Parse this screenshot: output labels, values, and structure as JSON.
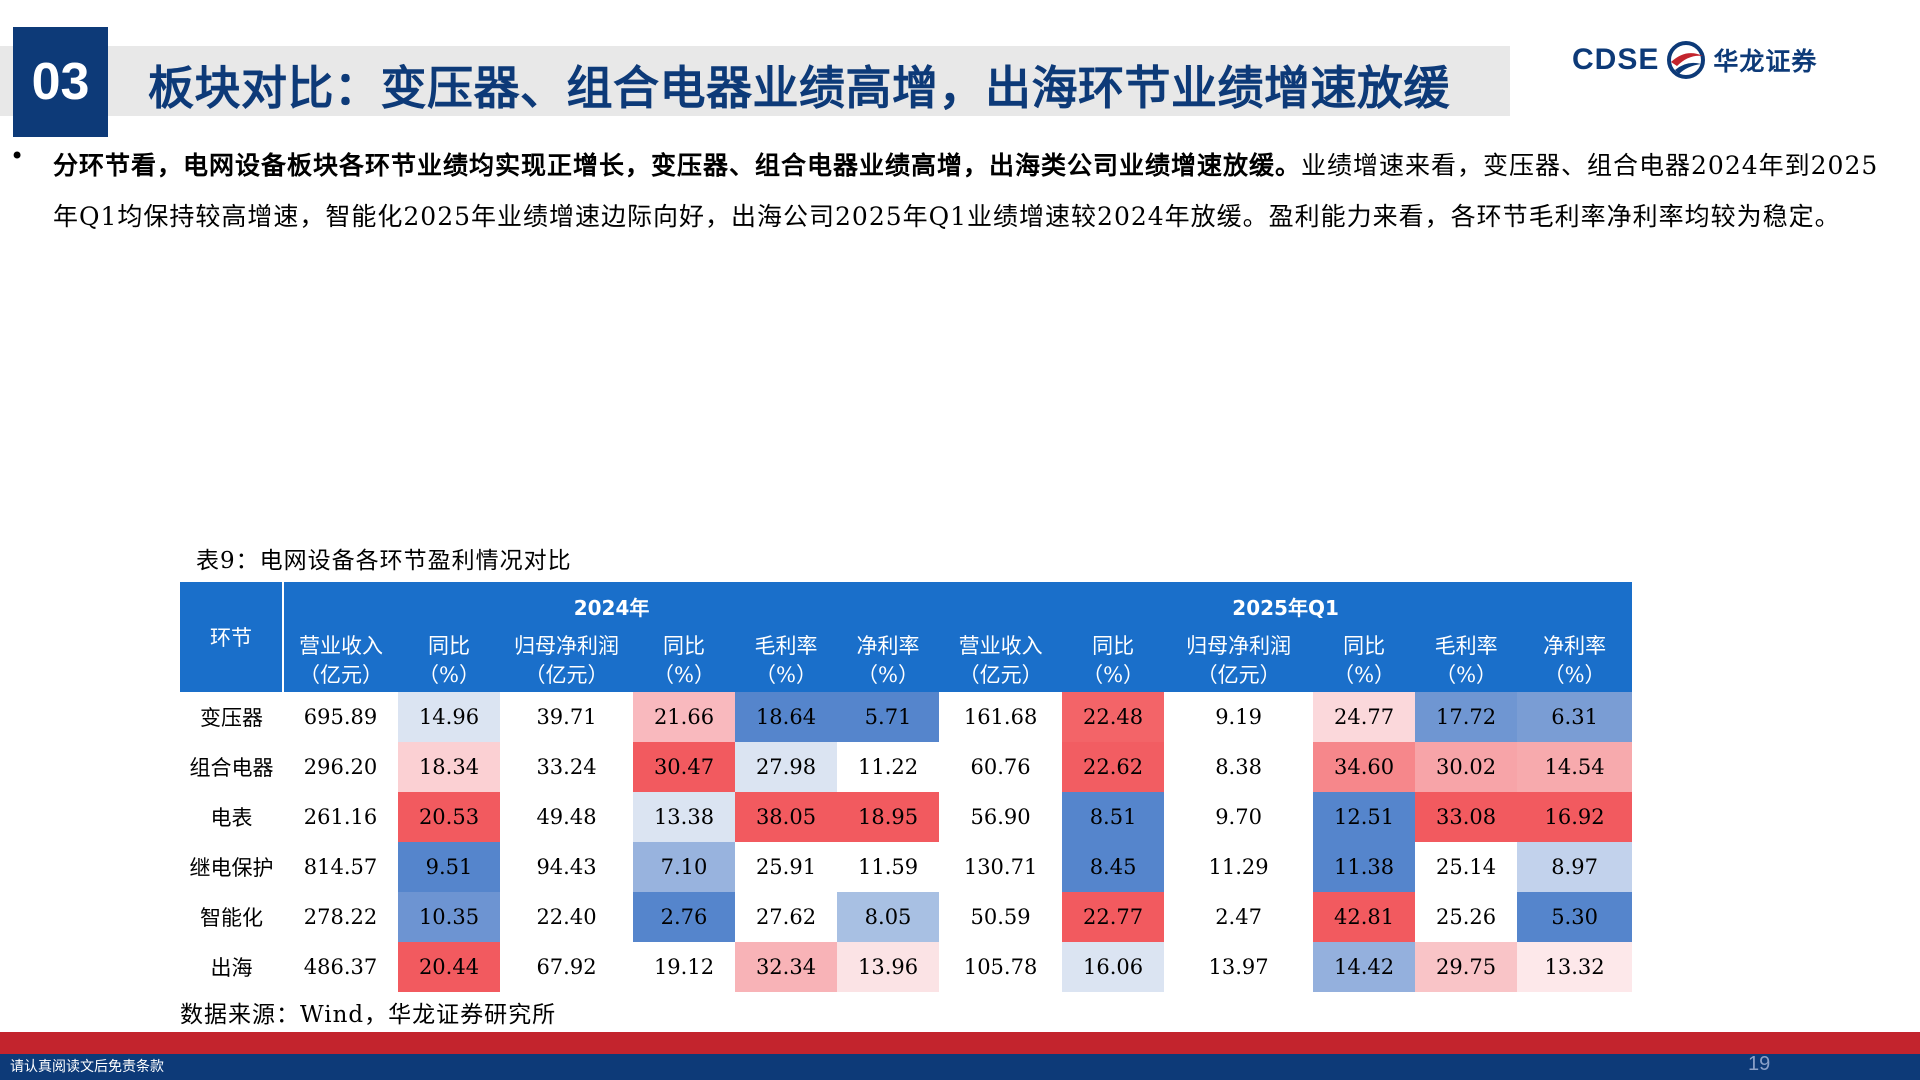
{
  "header": {
    "section_number": "03",
    "title": "板块对比：变压器、组合电器业绩高增，出海环节业绩增速放缓",
    "logo_en": "CDSE",
    "logo_cn": "华龙证券"
  },
  "body": {
    "bold_text": "分环节看，电网设备板块各环节业绩均实现正增长，变压器、组合电器业绩高增，出海类公司业绩增速放缓。",
    "normal_text": "业绩增速来看，变压器、组合电器2024年到2025年Q1均保持较高增速，智能化2025年业绩增速边际向好，出海公司2025年Q1业绩增速较2024年放缓。盈利能力来看，各环节毛利率净利率均较为稳定。"
  },
  "table": {
    "caption": "表9：电网设备各环节盈利情况对比",
    "segment_header": "环节",
    "group_2024": "2024年",
    "group_2025": "2025年Q1",
    "sub_headers": [
      [
        "营业收入",
        "（亿元）"
      ],
      [
        "同比",
        "（%）"
      ],
      [
        "归母净利润",
        "（亿元）"
      ],
      [
        "同比",
        "（%）"
      ],
      [
        "毛利率",
        "（%）"
      ],
      [
        "净利率",
        "（%）"
      ],
      [
        "营业收入",
        "（亿元）"
      ],
      [
        "同比",
        "（%）"
      ],
      [
        "归母净利润",
        "（亿元）"
      ],
      [
        "同比",
        "（%）"
      ],
      [
        "毛利率",
        "（%）"
      ],
      [
        "净利率",
        "（%）"
      ]
    ],
    "rows": [
      {
        "segment": "变压器",
        "cells": [
          "695.89",
          "14.96",
          "39.71",
          "21.66",
          "18.64",
          "5.71",
          "161.68",
          "22.48",
          "9.19",
          "24.77",
          "17.72",
          "6.31"
        ]
      },
      {
        "segment": "组合电器",
        "cells": [
          "296.20",
          "18.34",
          "33.24",
          "30.47",
          "27.98",
          "11.22",
          "60.76",
          "22.62",
          "8.38",
          "34.60",
          "30.02",
          "14.54"
        ]
      },
      {
        "segment": "电表",
        "cells": [
          "261.16",
          "20.53",
          "49.48",
          "13.38",
          "38.05",
          "18.95",
          "56.90",
          "8.51",
          "9.70",
          "12.51",
          "33.08",
          "16.92"
        ]
      },
      {
        "segment": "继电保护",
        "cells": [
          "814.57",
          "9.51",
          "94.43",
          "7.10",
          "25.91",
          "11.59",
          "130.71",
          "8.45",
          "11.29",
          "11.38",
          "25.14",
          "8.97"
        ]
      },
      {
        "segment": "智能化",
        "cells": [
          "278.22",
          "10.35",
          "22.40",
          "2.76",
          "27.62",
          "8.05",
          "50.59",
          "22.77",
          "2.47",
          "42.81",
          "25.26",
          "5.30"
        ]
      },
      {
        "segment": "出海",
        "cells": [
          "486.37",
          "20.44",
          "67.92",
          "19.12",
          "32.34",
          "13.96",
          "105.78",
          "16.06",
          "13.97",
          "14.42",
          "29.75",
          "13.32"
        ]
      }
    ],
    "cell_colors": [
      [
        "#ffffff",
        "#dbe4f2",
        "#ffffff",
        "#f9b9be",
        "#5585cc",
        "#5585cc",
        "#ffffff",
        "#f36468",
        "#ffffff",
        "#fbd8db",
        "#6f96d2",
        "#7a9dd4"
      ],
      [
        "#ffffff",
        "#fbd0d3",
        "#ffffff",
        "#f25a5f",
        "#dbe4f2",
        "#ffffff",
        "#ffffff",
        "#f25d62",
        "#ffffff",
        "#f6878b",
        "#f7a4a8",
        "#f7aaad"
      ],
      [
        "#ffffff",
        "#f25a5f",
        "#ffffff",
        "#dbe4f2",
        "#f25a5f",
        "#f25a5f",
        "#ffffff",
        "#5585cc",
        "#ffffff",
        "#5585cc",
        "#f25a5f",
        "#f25a5f"
      ],
      [
        "#ffffff",
        "#5585cc",
        "#ffffff",
        "#98b3de",
        "#ffffff",
        "#ffffff",
        "#ffffff",
        "#5585cc",
        "#ffffff",
        "#5585cc",
        "#ffffff",
        "#c2d2ec"
      ],
      [
        "#ffffff",
        "#6d94d2",
        "#ffffff",
        "#5585cc",
        "#ffffff",
        "#a8c0e3",
        "#ffffff",
        "#f25a5f",
        "#ffffff",
        "#f25a5f",
        "#ffffff",
        "#5585cc"
      ],
      [
        "#ffffff",
        "#f25a5f",
        "#ffffff",
        "#ffffff",
        "#f8b3b7",
        "#fbe3e5",
        "#ffffff",
        "#dbe4f2",
        "#ffffff",
        "#94b0dd",
        "#f9c4c7",
        "#fde8ea"
      ]
    ],
    "source": "数据来源：Wind，华龙证券研究所"
  },
  "footer": {
    "disclaimer": "请认真阅读文后免责条款",
    "page_number": "19"
  },
  "colors": {
    "brand_blue": "#0d3a78",
    "header_blue": "#1a6fca",
    "accent_red": "#c3242d"
  }
}
